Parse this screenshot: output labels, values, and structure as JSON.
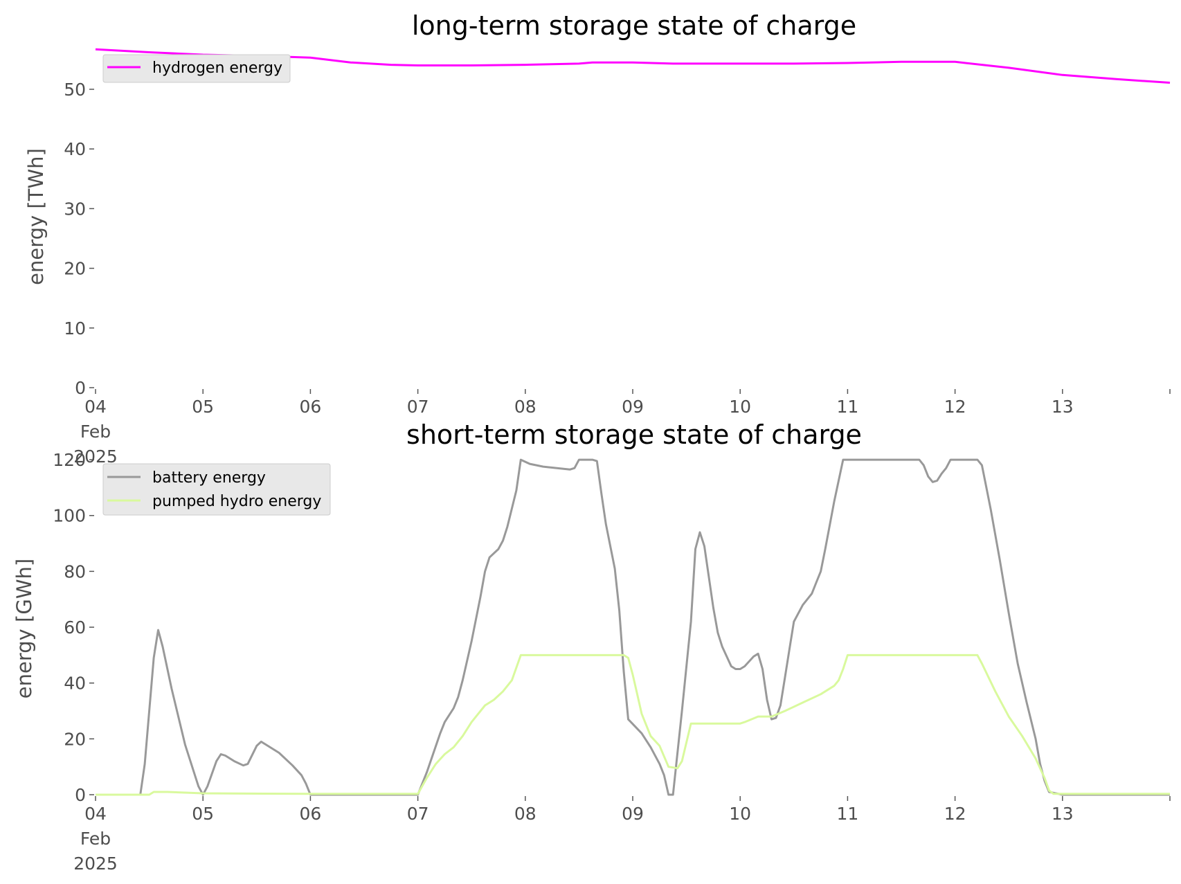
{
  "chart_data": [
    {
      "type": "line",
      "title": "long-term storage state of charge",
      "xlabel": "",
      "ylabel": "energy [TWh]",
      "xlim": [
        "2025-02-04",
        "2025-02-14"
      ],
      "ylim": [
        0,
        58
      ],
      "yticks": [
        0,
        10,
        20,
        30,
        40,
        50
      ],
      "xticks": [
        {
          "date": "2025-02-04",
          "lines": [
            "04",
            "Feb",
            "2025"
          ]
        },
        {
          "date": "2025-02-05",
          "lines": [
            "05"
          ]
        },
        {
          "date": "2025-02-06",
          "lines": [
            "06"
          ]
        },
        {
          "date": "2025-02-07",
          "lines": [
            "07"
          ]
        },
        {
          "date": "2025-02-08",
          "lines": [
            "08"
          ]
        },
        {
          "date": "2025-02-09",
          "lines": [
            "09"
          ]
        },
        {
          "date": "2025-02-10",
          "lines": [
            "10"
          ]
        },
        {
          "date": "2025-02-11",
          "lines": [
            "11"
          ]
        },
        {
          "date": "2025-02-12",
          "lines": [
            "12"
          ]
        },
        {
          "date": "2025-02-13",
          "lines": [
            "13"
          ]
        }
      ],
      "grid": false,
      "legend": "upper-left",
      "series": [
        {
          "name": "hydrogen energy",
          "color": "#ff00ff",
          "points": [
            [
              "2025-02-04 00:00",
              56.7
            ],
            [
              "2025-02-04 12:00",
              56.2
            ],
            [
              "2025-02-05 00:00",
              55.8
            ],
            [
              "2025-02-05 12:00",
              55.6
            ],
            [
              "2025-02-06 00:00",
              55.3
            ],
            [
              "2025-02-06 09:00",
              54.5
            ],
            [
              "2025-02-06 18:00",
              54.1
            ],
            [
              "2025-02-07 00:00",
              54.0
            ],
            [
              "2025-02-07 12:00",
              54.0
            ],
            [
              "2025-02-08 00:00",
              54.1
            ],
            [
              "2025-02-08 12:00",
              54.3
            ],
            [
              "2025-02-08 15:00",
              54.5
            ],
            [
              "2025-02-09 00:00",
              54.5
            ],
            [
              "2025-02-09 09:00",
              54.3
            ],
            [
              "2025-02-10 00:00",
              54.3
            ],
            [
              "2025-02-10 12:00",
              54.3
            ],
            [
              "2025-02-11 00:00",
              54.4
            ],
            [
              "2025-02-11 12:00",
              54.6
            ],
            [
              "2025-02-12 00:00",
              54.6
            ],
            [
              "2025-02-12 12:00",
              53.6
            ],
            [
              "2025-02-13 00:00",
              52.4
            ],
            [
              "2025-02-13 12:00",
              51.7
            ],
            [
              "2025-02-14 00:00",
              51.1
            ]
          ]
        }
      ]
    },
    {
      "type": "line",
      "title": "short-term storage state of charge",
      "xlabel": "",
      "ylabel": "energy [GWh]",
      "xlim": [
        "2025-02-04",
        "2025-02-14"
      ],
      "ylim": [
        0,
        122
      ],
      "yticks": [
        0,
        20,
        40,
        60,
        80,
        100,
        120
      ],
      "xticks": [
        {
          "date": "2025-02-04",
          "lines": [
            "04",
            "Feb",
            "2025"
          ]
        },
        {
          "date": "2025-02-05",
          "lines": [
            "05"
          ]
        },
        {
          "date": "2025-02-06",
          "lines": [
            "06"
          ]
        },
        {
          "date": "2025-02-07",
          "lines": [
            "07"
          ]
        },
        {
          "date": "2025-02-08",
          "lines": [
            "08"
          ]
        },
        {
          "date": "2025-02-09",
          "lines": [
            "09"
          ]
        },
        {
          "date": "2025-02-10",
          "lines": [
            "10"
          ]
        },
        {
          "date": "2025-02-11",
          "lines": [
            "11"
          ]
        },
        {
          "date": "2025-02-12",
          "lines": [
            "12"
          ]
        },
        {
          "date": "2025-02-13",
          "lines": [
            "13"
          ]
        }
      ],
      "grid": false,
      "legend": "upper-left",
      "series": [
        {
          "name": "battery energy",
          "color": "#999999",
          "points": [
            [
              "2025-02-04 00:00",
              0
            ],
            [
              "2025-02-04 10:00",
              0
            ],
            [
              "2025-02-04 11:00",
              11
            ],
            [
              "2025-02-04 13:00",
              49
            ],
            [
              "2025-02-04 14:00",
              59
            ],
            [
              "2025-02-04 15:00",
              53
            ],
            [
              "2025-02-04 17:00",
              38
            ],
            [
              "2025-02-04 20:00",
              18
            ],
            [
              "2025-02-04 23:00",
              3
            ],
            [
              "2025-02-05 00:00",
              0
            ],
            [
              "2025-02-05 01:00",
              3
            ],
            [
              "2025-02-05 03:00",
              12
            ],
            [
              "2025-02-05 04:00",
              14.5
            ],
            [
              "2025-02-05 05:00",
              14
            ],
            [
              "2025-02-05 07:00",
              12
            ],
            [
              "2025-02-05 09:00",
              10.5
            ],
            [
              "2025-02-05 10:00",
              11
            ],
            [
              "2025-02-05 12:00",
              17.5
            ],
            [
              "2025-02-05 13:00",
              19
            ],
            [
              "2025-02-05 14:00",
              18
            ],
            [
              "2025-02-05 17:00",
              15
            ],
            [
              "2025-02-05 20:00",
              10.5
            ],
            [
              "2025-02-05 22:00",
              7
            ],
            [
              "2025-02-05 23:00",
              4
            ],
            [
              "2025-02-06 00:00",
              0
            ],
            [
              "2025-02-07 00:00",
              0
            ],
            [
              "2025-02-07 02:00",
              8
            ],
            [
              "2025-02-07 05:00",
              22
            ],
            [
              "2025-02-07 06:00",
              26
            ],
            [
              "2025-02-07 08:00",
              31
            ],
            [
              "2025-02-07 09:00",
              35
            ],
            [
              "2025-02-07 10:00",
              41
            ],
            [
              "2025-02-07 12:00",
              55
            ],
            [
              "2025-02-07 14:00",
              71
            ],
            [
              "2025-02-07 15:00",
              80
            ],
            [
              "2025-02-07 16:00",
              85
            ],
            [
              "2025-02-07 18:00",
              88
            ],
            [
              "2025-02-07 19:00",
              91
            ],
            [
              "2025-02-07 20:00",
              96
            ],
            [
              "2025-02-07 22:00",
              109
            ],
            [
              "2025-02-07 23:00",
              120
            ],
            [
              "2025-02-08 01:00",
              118.5
            ],
            [
              "2025-02-08 04:00",
              117.5
            ],
            [
              "2025-02-08 10:00",
              116.5
            ],
            [
              "2025-02-08 11:00",
              117
            ],
            [
              "2025-02-08 12:00",
              120
            ],
            [
              "2025-02-08 15:00",
              120
            ],
            [
              "2025-02-08 16:00",
              119.5
            ],
            [
              "2025-02-08 17:00",
              108
            ],
            [
              "2025-02-08 18:00",
              97
            ],
            [
              "2025-02-08 20:00",
              81
            ],
            [
              "2025-02-08 21:00",
              66
            ],
            [
              "2025-02-08 22:00",
              44
            ],
            [
              "2025-02-08 23:00",
              27
            ],
            [
              "2025-02-09 02:00",
              22
            ],
            [
              "2025-02-09 04:00",
              17
            ],
            [
              "2025-02-09 06:00",
              11
            ],
            [
              "2025-02-09 07:00",
              7
            ],
            [
              "2025-02-09 08:00",
              0
            ],
            [
              "2025-02-09 09:00",
              0
            ],
            [
              "2025-02-09 11:00",
              30
            ],
            [
              "2025-02-09 13:00",
              62
            ],
            [
              "2025-02-09 14:00",
              88
            ],
            [
              "2025-02-09 15:00",
              94
            ],
            [
              "2025-02-09 16:00",
              89
            ],
            [
              "2025-02-09 18:00",
              67
            ],
            [
              "2025-02-09 19:00",
              58
            ],
            [
              "2025-02-09 20:00",
              53
            ],
            [
              "2025-02-09 22:00",
              46
            ],
            [
              "2025-02-09 23:00",
              45
            ],
            [
              "2025-02-10 00:00",
              45
            ],
            [
              "2025-02-10 01:00",
              46
            ],
            [
              "2025-02-10 03:00",
              49.5
            ],
            [
              "2025-02-10 04:00",
              50.5
            ],
            [
              "2025-02-10 05:00",
              45
            ],
            [
              "2025-02-10 06:00",
              34
            ],
            [
              "2025-02-10 07:00",
              27
            ],
            [
              "2025-02-10 08:00",
              27.5
            ],
            [
              "2025-02-10 09:00",
              32
            ],
            [
              "2025-02-10 10:00",
              42
            ],
            [
              "2025-02-10 11:00",
              52
            ],
            [
              "2025-02-10 12:00",
              62
            ],
            [
              "2025-02-10 14:00",
              68
            ],
            [
              "2025-02-10 16:00",
              72
            ],
            [
              "2025-02-10 17:00",
              76
            ],
            [
              "2025-02-10 18:00",
              80
            ],
            [
              "2025-02-10 19:00",
              88
            ],
            [
              "2025-02-10 21:00",
              105
            ],
            [
              "2025-02-10 23:00",
              120
            ],
            [
              "2025-02-11 16:00",
              120
            ],
            [
              "2025-02-11 17:00",
              118
            ],
            [
              "2025-02-11 18:00",
              114
            ],
            [
              "2025-02-11 19:00",
              112
            ],
            [
              "2025-02-11 20:00",
              112.5
            ],
            [
              "2025-02-11 21:00",
              115
            ],
            [
              "2025-02-11 22:00",
              117
            ],
            [
              "2025-02-11 23:00",
              120
            ],
            [
              "2025-02-12 05:00",
              120
            ],
            [
              "2025-02-12 06:00",
              118
            ],
            [
              "2025-02-12 07:00",
              110
            ],
            [
              "2025-02-12 08:00",
              102
            ],
            [
              "2025-02-12 10:00",
              84
            ],
            [
              "2025-02-12 12:00",
              65
            ],
            [
              "2025-02-12 14:00",
              47
            ],
            [
              "2025-02-12 16:00",
              33
            ],
            [
              "2025-02-12 18:00",
              20
            ],
            [
              "2025-02-12 19:00",
              11
            ],
            [
              "2025-02-12 20:00",
              5
            ],
            [
              "2025-02-12 21:00",
              1
            ],
            [
              "2025-02-13 00:00",
              0
            ],
            [
              "2025-02-14 00:00",
              0
            ]
          ]
        },
        {
          "name": "pumped hydro energy",
          "color": "#d9f99d",
          "points": [
            [
              "2025-02-04 00:00",
              0
            ],
            [
              "2025-02-04 12:00",
              0
            ],
            [
              "2025-02-04 13:00",
              1
            ],
            [
              "2025-02-04 16:00",
              1
            ],
            [
              "2025-02-05 00:00",
              0.5
            ],
            [
              "2025-02-06 00:00",
              0.3
            ],
            [
              "2025-02-07 00:00",
              0.3
            ],
            [
              "2025-02-07 02:00",
              6
            ],
            [
              "2025-02-07 04:00",
              11
            ],
            [
              "2025-02-07 06:00",
              14.5
            ],
            [
              "2025-02-07 08:00",
              17
            ],
            [
              "2025-02-07 10:00",
              21
            ],
            [
              "2025-02-07 12:00",
              26
            ],
            [
              "2025-02-07 15:00",
              32
            ],
            [
              "2025-02-07 17:00",
              34
            ],
            [
              "2025-02-07 19:00",
              37
            ],
            [
              "2025-02-07 21:00",
              41
            ],
            [
              "2025-02-07 23:00",
              50
            ],
            [
              "2025-02-08 22:00",
              50
            ],
            [
              "2025-02-08 23:00",
              49
            ],
            [
              "2025-02-09 00:00",
              43
            ],
            [
              "2025-02-09 01:00",
              36
            ],
            [
              "2025-02-09 02:00",
              29
            ],
            [
              "2025-02-09 03:00",
              25
            ],
            [
              "2025-02-09 04:00",
              21
            ],
            [
              "2025-02-09 06:00",
              17.5
            ],
            [
              "2025-02-09 08:00",
              10
            ],
            [
              "2025-02-09 10:00",
              9.5
            ],
            [
              "2025-02-09 11:00",
              12
            ],
            [
              "2025-02-09 13:00",
              25.5
            ],
            [
              "2025-02-10 00:00",
              25.5
            ],
            [
              "2025-02-10 01:00",
              26
            ],
            [
              "2025-02-10 04:00",
              28
            ],
            [
              "2025-02-10 07:00",
              28
            ],
            [
              "2025-02-10 10:00",
              30
            ],
            [
              "2025-02-10 14:00",
              33
            ],
            [
              "2025-02-10 18:00",
              36
            ],
            [
              "2025-02-10 21:00",
              39
            ],
            [
              "2025-02-10 22:00",
              41
            ],
            [
              "2025-02-10 23:00",
              45
            ],
            [
              "2025-02-11 00:00",
              50
            ],
            [
              "2025-02-12 05:00",
              50
            ],
            [
              "2025-02-12 06:00",
              47
            ],
            [
              "2025-02-12 09:00",
              37
            ],
            [
              "2025-02-12 12:00",
              28
            ],
            [
              "2025-02-12 15:00",
              21
            ],
            [
              "2025-02-12 18:00",
              13
            ],
            [
              "2025-02-12 20:00",
              6
            ],
            [
              "2025-02-12 21:00",
              1.5
            ],
            [
              "2025-02-12 22:00",
              0.3
            ],
            [
              "2025-02-14 00:00",
              0.3
            ]
          ]
        }
      ]
    }
  ]
}
